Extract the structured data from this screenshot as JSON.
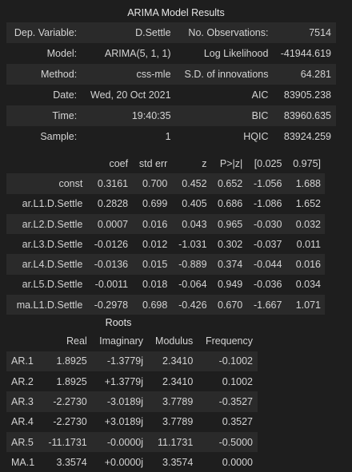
{
  "summary": {
    "caption": "ARIMA Model Results",
    "rows": [
      {
        "l1": "Dep. Variable:",
        "v1": "D.Settle",
        "l2": "No. Observations:",
        "v2": "7514"
      },
      {
        "l1": "Model:",
        "v1": "ARIMA(5, 1, 1)",
        "l2": "Log Likelihood",
        "v2": "-41944.619"
      },
      {
        "l1": "Method:",
        "v1": "css-mle",
        "l2": "S.D. of innovations",
        "v2": "64.281"
      },
      {
        "l1": "Date:",
        "v1": "Wed, 20 Oct 2021",
        "l2": "AIC",
        "v2": "83905.238"
      },
      {
        "l1": "Time:",
        "v1": "19:40:35",
        "l2": "BIC",
        "v2": "83960.635"
      },
      {
        "l1": "Sample:",
        "v1": "1",
        "l2": "HQIC",
        "v2": "83924.259"
      }
    ]
  },
  "coefficients": {
    "headers": [
      "",
      "coef",
      "std err",
      "z",
      "P>|z|",
      "[0.025",
      "0.975]"
    ],
    "rows": [
      [
        "const",
        "0.3161",
        "0.700",
        "0.452",
        "0.652",
        "-1.056",
        "1.688"
      ],
      [
        "ar.L1.D.Settle",
        "0.2828",
        "0.699",
        "0.405",
        "0.686",
        "-1.086",
        "1.652"
      ],
      [
        "ar.L2.D.Settle",
        "0.0007",
        "0.016",
        "0.043",
        "0.965",
        "-0.030",
        "0.032"
      ],
      [
        "ar.L3.D.Settle",
        "-0.0126",
        "0.012",
        "-1.031",
        "0.302",
        "-0.037",
        "0.011"
      ],
      [
        "ar.L4.D.Settle",
        "-0.0136",
        "0.015",
        "-0.889",
        "0.374",
        "-0.044",
        "0.016"
      ],
      [
        "ar.L5.D.Settle",
        "-0.0011",
        "0.018",
        "-0.064",
        "0.949",
        "-0.036",
        "0.034"
      ],
      [
        "ma.L1.D.Settle",
        "-0.2978",
        "0.698",
        "-0.426",
        "0.670",
        "-1.667",
        "1.071"
      ]
    ]
  },
  "roots": {
    "caption": "Roots",
    "headers": [
      "",
      "Real",
      "Imaginary",
      "Modulus",
      "Frequency"
    ],
    "rows": [
      [
        "AR.1",
        "1.8925",
        "-1.3779j",
        "2.3410",
        "-0.1002"
      ],
      [
        "AR.2",
        "1.8925",
        "+1.3779j",
        "2.3410",
        "0.1002"
      ],
      [
        "AR.3",
        "-2.2730",
        "-3.0189j",
        "3.7789",
        "-0.3527"
      ],
      [
        "AR.4",
        "-2.2730",
        "+3.0189j",
        "3.7789",
        "0.3527"
      ],
      [
        "AR.5",
        "-11.1731",
        "-0.0000j",
        "11.1731",
        "-0.5000"
      ],
      [
        "MA.1",
        "3.3574",
        "+0.0000j",
        "3.3574",
        "0.0000"
      ]
    ]
  }
}
